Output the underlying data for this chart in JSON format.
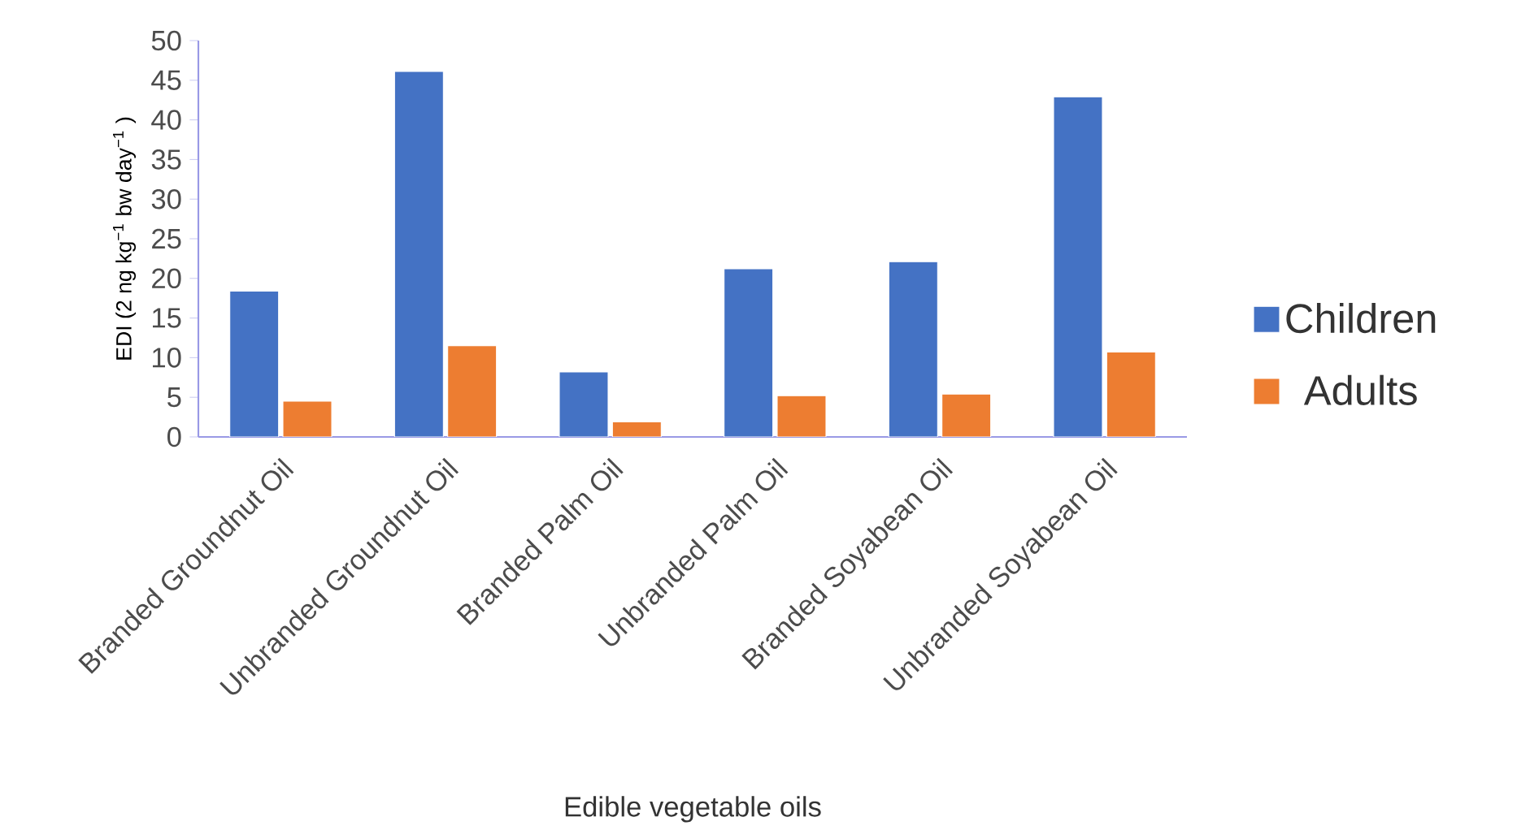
{
  "chart_data": {
    "type": "bar",
    "xlabel": "Edible vegetable oils",
    "ylabel": "EDI (2 ng kg$^{−1}$ bw day$^{−1}$ )",
    "categories": [
      "Branded Groundnut Oil",
      "Unbranded Groundnut Oil",
      "Branded Palm Oil",
      "Unbranded Palm Oil",
      "Branded Soyabean Oil",
      "Unbranded Soyabean Oil"
    ],
    "series": [
      {
        "name": "Children",
        "color": "#4472c4",
        "values": [
          18.4,
          46.1,
          8.2,
          21.2,
          22.1,
          42.9
        ]
      },
      {
        "name": "Adults",
        "color": "#ed7d31",
        "values": [
          4.5,
          11.5,
          1.9,
          5.2,
          5.4,
          10.7
        ]
      }
    ],
    "ylim": [
      0,
      50
    ],
    "yticks": [
      0,
      5,
      10,
      15,
      20,
      25,
      30,
      35,
      40,
      45,
      50
    ],
    "grid": false,
    "legend": "right"
  }
}
